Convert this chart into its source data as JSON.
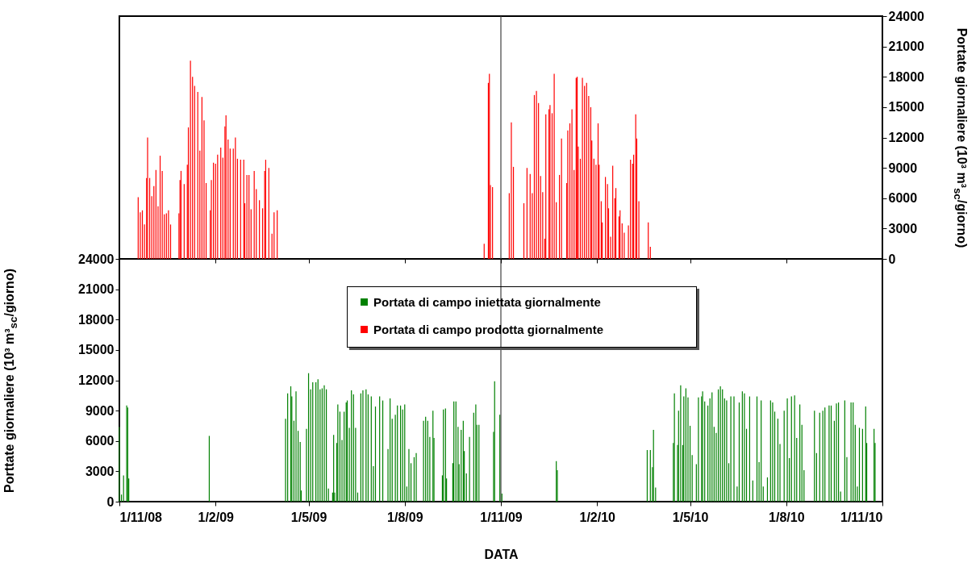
{
  "chart_data": [
    {
      "type": "bar",
      "y2label": "Portate giornaliere (10³ m³$_{sc}$/giorno)",
      "xlim": [
        "2008-11-01",
        "2010-11-01"
      ],
      "tick_labels": "y",
      "legend": "bottom",
      "xticks": [
        {
          "value": "2008-11-01",
          "label": null
        },
        {
          "value": "2009-02-01",
          "label": null
        },
        {
          "value": "2009-05-01",
          "label": null
        },
        {
          "value": "2009-08-01",
          "label": null
        },
        {
          "value": "2009-11-01",
          "label": null
        },
        {
          "value": "2010-02-01",
          "label": null
        },
        {
          "value": "2010-05-01",
          "label": null
        },
        {
          "value": "2010-08-01",
          "label": null
        },
        {
          "value": "2010-11-01",
          "label": null
        }
      ],
      "y2lim": [
        0,
        24000
      ],
      "y2ticks": [
        0,
        3000,
        6000,
        9000,
        12000,
        15000,
        18000,
        21000,
        24000
      ],
      "grid": false,
      "ref_lines": [
        {
          "axis": "x",
          "value": "2009-11-01",
          "color": "#404040"
        }
      ],
      "series": [
        {
          "name": "Portata di campo prodotta giornalmente",
          "color": "#ff0000",
          "axis": "y2",
          "x": [
            "2008-11-19",
            "2008-11-21",
            "2008-11-23",
            "2008-11-25",
            "2008-11-27",
            "2008-11-28",
            "2008-11-30",
            "2008-12-02",
            "2008-12-04",
            "2008-12-06",
            "2008-12-08",
            "2008-12-10",
            "2008-12-12",
            "2008-12-14",
            "2008-12-16",
            "2008-12-18",
            "2008-12-20",
            "2008-12-28",
            "2008-12-29",
            "2008-12-30",
            "2009-01-02",
            "2009-01-05",
            "2009-01-06",
            "2009-01-08",
            "2009-01-10",
            "2009-01-12",
            "2009-01-15",
            "2009-01-17",
            "2009-01-19",
            "2009-01-21",
            "2009-01-23",
            "2009-01-27",
            "2009-01-28",
            "2009-01-30",
            "2009-02-01",
            "2009-02-03",
            "2009-02-06",
            "2009-02-08",
            "2009-02-10",
            "2009-02-11",
            "2009-02-13",
            "2009-02-15",
            "2009-02-18",
            "2009-02-20",
            "2009-02-22",
            "2009-02-25",
            "2009-02-28",
            "2009-03-01",
            "2009-03-03",
            "2009-03-05",
            "2009-03-07",
            "2009-03-10",
            "2009-03-12",
            "2009-03-15",
            "2009-03-18",
            "2009-03-20",
            "2009-03-21",
            "2009-03-24",
            "2009-03-27",
            "2009-03-29",
            "2009-04-01",
            "2009-10-16",
            "2009-10-20",
            "2009-10-21",
            "2009-10-22",
            "2009-10-24",
            "2009-11-09",
            "2009-11-11",
            "2009-11-13",
            "2009-11-23",
            "2009-11-26",
            "2009-11-29",
            "2009-12-01",
            "2009-12-03",
            "2009-12-05",
            "2009-12-07",
            "2009-12-09",
            "2009-12-11",
            "2009-12-13",
            "2009-12-14",
            "2009-12-17",
            "2009-12-18",
            "2009-12-20",
            "2009-12-22",
            "2009-12-24",
            "2009-12-27",
            "2009-12-29",
            "2010-01-03",
            "2010-01-04",
            "2010-01-06",
            "2010-01-08",
            "2010-01-10",
            "2010-01-12",
            "2010-01-13",
            "2010-01-14",
            "2010-01-16",
            "2010-01-18",
            "2010-01-20",
            "2010-01-22",
            "2010-01-24",
            "2010-01-26",
            "2010-01-27",
            "2010-01-29",
            "2010-01-31",
            "2010-02-02",
            "2010-02-03",
            "2010-02-05",
            "2010-02-06",
            "2010-02-09",
            "2010-02-11",
            "2010-02-12",
            "2010-02-14",
            "2010-02-16",
            "2010-02-18",
            "2010-02-19",
            "2010-02-22",
            "2010-02-23",
            "2010-02-25",
            "2010-02-27",
            "2010-03-03",
            "2010-03-05",
            "2010-03-07",
            "2010-03-08",
            "2010-03-10",
            "2010-03-11",
            "2010-03-13",
            "2010-03-22",
            "2010-03-24"
          ],
          "values": [
            6100,
            4600,
            4800,
            3400,
            8000,
            12000,
            8000,
            6200,
            7200,
            8800,
            5200,
            10200,
            8700,
            4400,
            4500,
            4800,
            3400,
            4500,
            7800,
            8700,
            7400,
            9300,
            13000,
            19600,
            18000,
            17100,
            16500,
            10700,
            16000,
            13700,
            7500,
            4800,
            7800,
            9500,
            9400,
            10300,
            11000,
            10000,
            13100,
            14200,
            11800,
            10900,
            10900,
            12000,
            9900,
            9800,
            9800,
            5500,
            8300,
            8300,
            4900,
            8700,
            6900,
            5800,
            5000,
            8700,
            9800,
            9000,
            2500,
            4600,
            4800,
            1500,
            17400,
            18300,
            7300,
            7100,
            6500,
            13500,
            9100,
            5500,
            9000,
            8400,
            6500,
            16200,
            16600,
            15400,
            8200,
            6600,
            2000,
            14300,
            14800,
            15200,
            14400,
            18300,
            5600,
            8300,
            11900,
            7500,
            12700,
            13400,
            14800,
            8800,
            17900,
            18000,
            11100,
            9900,
            17900,
            17100,
            17400,
            16100,
            15000,
            11700,
            9900,
            9300,
            13400,
            9300,
            5700,
            3600,
            8100,
            7400,
            5000,
            2200,
            9200,
            6000,
            7000,
            4200,
            4800,
            3500,
            2600,
            3300,
            9800,
            9400,
            10300,
            14300,
            11900,
            5700,
            3600,
            1200
          ]
        }
      ]
    },
    {
      "type": "bar",
      "xlabel": "DATA",
      "ylabel": "Porttate giornaliere (10³ m³$_{sc}$/giorno)",
      "xlim": [
        "2008-11-01",
        "2010-11-01"
      ],
      "xticks": [
        {
          "value": "2008-11-01",
          "label": "1/11/08"
        },
        {
          "value": "2009-02-01",
          "label": "1/2/09"
        },
        {
          "value": "2009-05-01",
          "label": "1/5/09"
        },
        {
          "value": "2009-08-01",
          "label": "1/8/09"
        },
        {
          "value": "2009-11-01",
          "label": "1/11/09"
        },
        {
          "value": "2010-02-01",
          "label": "1/2/10"
        },
        {
          "value": "2010-05-01",
          "label": "1/5/10"
        },
        {
          "value": "2010-08-01",
          "label": "1/8/10"
        },
        {
          "value": "2010-11-01",
          "label": "1/11/10"
        }
      ],
      "ylim": [
        0,
        24000
      ],
      "yticks": [
        0,
        3000,
        6000,
        9000,
        12000,
        15000,
        18000,
        21000,
        24000
      ],
      "grid": false,
      "legend": "top",
      "ref_lines": [
        {
          "axis": "x",
          "value": "2009-11-01",
          "color": "#404040"
        }
      ],
      "series": [
        {
          "name": "Portata di campo iniettata giornalmente",
          "color": "#008000",
          "axis": "y",
          "x": [
            "2008-11-01",
            "2008-11-03",
            "2008-11-05",
            "2008-11-08",
            "2008-11-09",
            "2008-11-10",
            "2009-01-26",
            "2009-04-09",
            "2009-04-11",
            "2009-04-14",
            "2009-04-15",
            "2009-04-17",
            "2009-04-19",
            "2009-04-21",
            "2009-04-23",
            "2009-04-24",
            "2009-04-29",
            "2009-05-01",
            "2009-05-03",
            "2009-05-05",
            "2009-05-08",
            "2009-05-10",
            "2009-05-12",
            "2009-05-14",
            "2009-05-16",
            "2009-05-18",
            "2009-05-20",
            "2009-05-24",
            "2009-05-25",
            "2009-05-26",
            "2009-05-28",
            "2009-05-29",
            "2009-05-31",
            "2009-06-02",
            "2009-06-04",
            "2009-06-06",
            "2009-06-07",
            "2009-06-09",
            "2009-06-11",
            "2009-06-13",
            "2009-06-15",
            "2009-06-17",
            "2009-06-20",
            "2009-06-22",
            "2009-06-25",
            "2009-06-27",
            "2009-06-30",
            "2009-07-02",
            "2009-07-04",
            "2009-07-08",
            "2009-07-11",
            "2009-07-16",
            "2009-07-18",
            "2009-07-20",
            "2009-07-23",
            "2009-07-25",
            "2009-07-28",
            "2009-07-30",
            "2009-08-01",
            "2009-08-03",
            "2009-08-05",
            "2009-08-07",
            "2009-08-10",
            "2009-08-12",
            "2009-08-19",
            "2009-08-21",
            "2009-08-23",
            "2009-08-25",
            "2009-08-28",
            "2009-08-29",
            "2009-09-06",
            "2009-09-07",
            "2009-09-09",
            "2009-09-10",
            "2009-09-16",
            "2009-09-17",
            "2009-09-19",
            "2009-09-21",
            "2009-09-22",
            "2009-09-24",
            "2009-09-26",
            "2009-09-27",
            "2009-09-29",
            "2009-10-02",
            "2009-10-06",
            "2009-10-08",
            "2009-10-09",
            "2009-10-11",
            "2009-10-25",
            "2009-10-26",
            "2009-10-31",
            "2009-11-02",
            "2009-12-24",
            "2009-12-25",
            "2010-03-21",
            "2010-03-24",
            "2010-03-26",
            "2010-03-27",
            "2010-03-29",
            "2010-04-15",
            "2010-04-16",
            "2010-04-19",
            "2010-04-20",
            "2010-04-22",
            "2010-04-24",
            "2010-04-25",
            "2010-04-27",
            "2010-04-29",
            "2010-05-01",
            "2010-05-03",
            "2010-05-07",
            "2010-05-09",
            "2010-05-12",
            "2010-05-13",
            "2010-05-15",
            "2010-05-18",
            "2010-05-20",
            "2010-05-22",
            "2010-05-24",
            "2010-05-26",
            "2010-05-28",
            "2010-05-30",
            "2010-06-01",
            "2010-06-03",
            "2010-06-05",
            "2010-06-07",
            "2010-06-09",
            "2010-06-12",
            "2010-06-15",
            "2010-06-17",
            "2010-06-20",
            "2010-06-22",
            "2010-06-24",
            "2010-06-27",
            "2010-06-30",
            "2010-07-04",
            "2010-07-06",
            "2010-07-08",
            "2010-07-10",
            "2010-07-14",
            "2010-07-17",
            "2010-07-19",
            "2010-07-21",
            "2010-07-24",
            "2010-07-26",
            "2010-07-30",
            "2010-08-02",
            "2010-08-04",
            "2010-08-06",
            "2010-08-09",
            "2010-08-11",
            "2010-08-14",
            "2010-08-16",
            "2010-08-18",
            "2010-08-28",
            "2010-08-30",
            "2010-09-02",
            "2010-09-05",
            "2010-09-07",
            "2010-09-11",
            "2010-09-13",
            "2010-09-16",
            "2010-09-18",
            "2010-09-20",
            "2010-09-22",
            "2010-09-26",
            "2010-09-28",
            "2010-10-02",
            "2010-10-04",
            "2010-10-06",
            "2010-10-08",
            "2010-10-10",
            "2010-10-13",
            "2010-10-16",
            "2010-10-17",
            "2010-10-24",
            "2010-10-25"
          ],
          "values": [
            7400,
            700,
            2600,
            9500,
            9300,
            2300,
            6500,
            8200,
            10700,
            11400,
            10400,
            8000,
            10900,
            7000,
            5900,
            1100,
            7200,
            12700,
            11100,
            11800,
            11800,
            12100,
            11100,
            11200,
            11500,
            11100,
            1300,
            900,
            6600,
            900,
            5800,
            9600,
            8900,
            6100,
            8900,
            9800,
            10000,
            7300,
            11000,
            10600,
            7300,
            900,
            10700,
            11000,
            11100,
            10600,
            10400,
            3500,
            9400,
            10400,
            10000,
            5200,
            10200,
            8200,
            8600,
            9500,
            9500,
            9100,
            9600,
            1500,
            5200,
            3800,
            4400,
            4800,
            8000,
            8400,
            8000,
            6400,
            9000,
            6300,
            2600,
            9100,
            9200,
            2300,
            3800,
            9900,
            9900,
            7400,
            3700,
            7100,
            8000,
            5000,
            2800,
            6400,
            8800,
            9600,
            7600,
            7600,
            6900,
            11900,
            8600,
            800,
            4000,
            3100,
            5100,
            5100,
            3400,
            7100,
            1400,
            5800,
            10700,
            5600,
            9000,
            11500,
            5600,
            10400,
            11200,
            10300,
            7500,
            4600,
            3700,
            10300,
            10400,
            10900,
            9900,
            9500,
            10200,
            10800,
            7400,
            6800,
            11100,
            11400,
            11100,
            10200,
            10000,
            3800,
            10400,
            10400,
            1500,
            9800,
            10900,
            10700,
            7200,
            10400,
            2100,
            10400,
            3900,
            10000,
            1500,
            2400,
            10000,
            9800,
            8900,
            8200,
            5700,
            9000,
            10200,
            4300,
            10400,
            10500,
            6300,
            9600,
            7600,
            3100,
            9000,
            4800,
            8800,
            9000,
            9300,
            9500,
            9500,
            8000,
            9700,
            9800,
            1000,
            10000,
            4400,
            9800,
            9800,
            7600,
            1500,
            7300,
            7200,
            9400,
            5800,
            7200,
            5800
          ]
        }
      ]
    }
  ]
}
